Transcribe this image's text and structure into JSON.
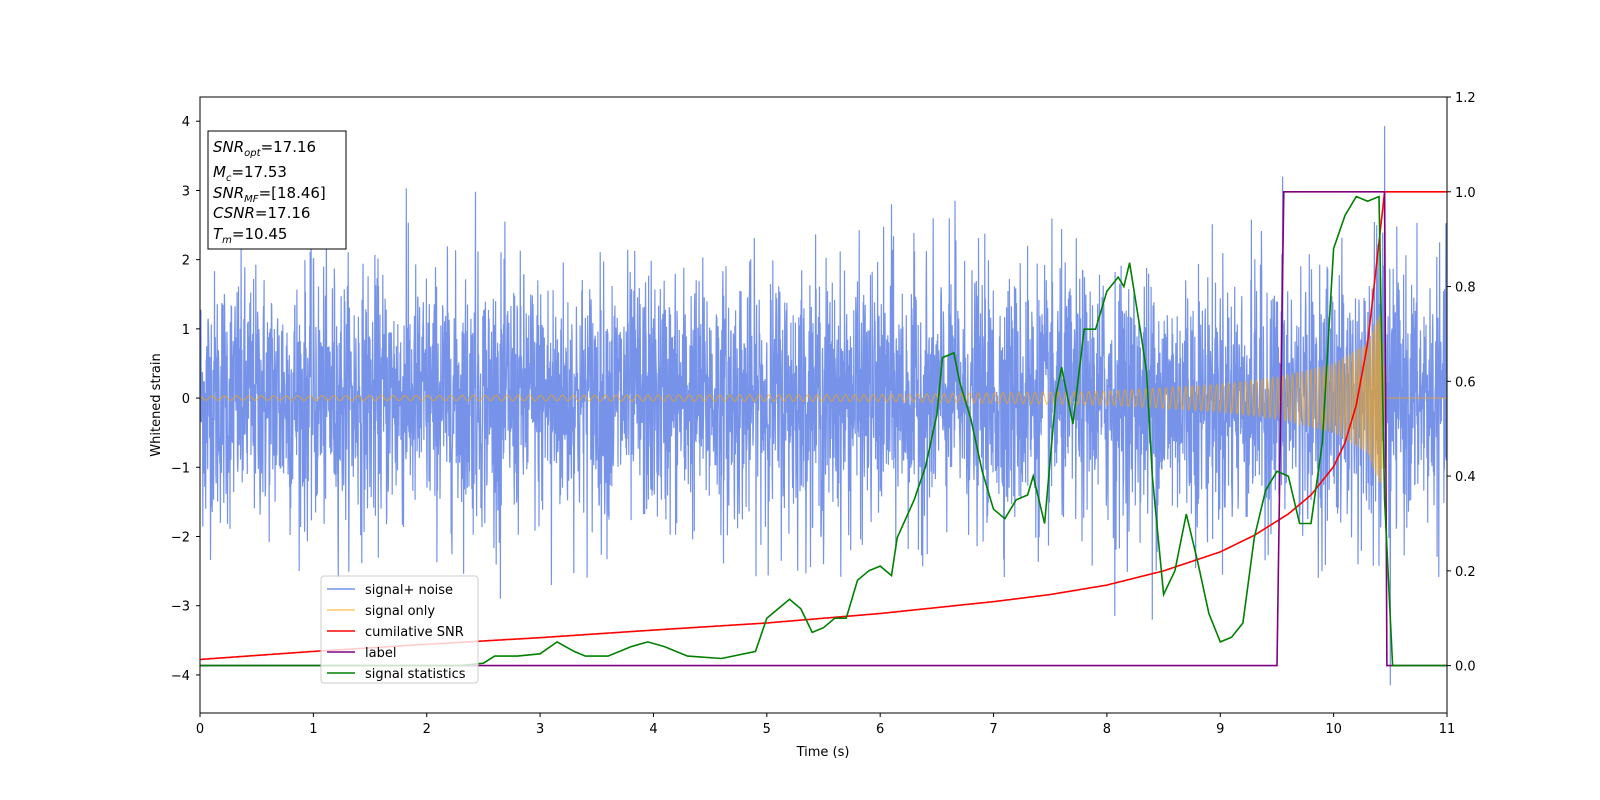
{
  "chart_data": {
    "type": "line",
    "xlabel": "Time (s)",
    "ylabel": "Whitened strain",
    "xlim": [
      0,
      11
    ],
    "ylim_left": [
      -4.55,
      4.35
    ],
    "ylim_right": [
      -0.1,
      1.2
    ],
    "x_ticks": [
      "0",
      "1",
      "2",
      "3",
      "4",
      "5",
      "6",
      "7",
      "8",
      "9",
      "10",
      "11"
    ],
    "y_ticks_left": [
      "4",
      "3",
      "2",
      "1",
      "0",
      "−1",
      "−2",
      "−3",
      "−4"
    ],
    "y_tick_values_left": [
      4,
      3,
      2,
      1,
      0,
      -1,
      -2,
      -3,
      -4
    ],
    "y_ticks_right": [
      "1.2",
      "1.0",
      "0.8",
      "0.6",
      "0.4",
      "0.2",
      "0.0"
    ],
    "y_tick_values_right": [
      1.2,
      1.0,
      0.8,
      0.6,
      0.4,
      0.2,
      0.0
    ],
    "grid": false,
    "legend_position": "lower-left",
    "info_box": {
      "snr_opt": "=17.16",
      "mc": "=17.53",
      "snr_mf": "=[18.46]",
      "csnr": "=17.16",
      "tm": "=10.45"
    },
    "series": [
      {
        "name": "signal+ noise",
        "axis": "left",
        "color": "#4169e1",
        "description": "white noise, amplitude ~ ±2 with spikes to ±3; spike values listed",
        "noise_std": 0.9,
        "spikes": [
          [
            0.05,
            -1.6
          ],
          [
            1.0,
            2.0
          ],
          [
            1.82,
            3.03
          ],
          [
            2.43,
            2.98
          ],
          [
            2.65,
            -2.9
          ],
          [
            3.1,
            -2.7
          ],
          [
            5.5,
            -2.4
          ],
          [
            6.1,
            2.8
          ],
          [
            6.66,
            2.85
          ],
          [
            7.3,
            2.2
          ],
          [
            8.07,
            -3.15
          ],
          [
            8.4,
            -3.2
          ],
          [
            9.55,
            3.2
          ],
          [
            10.45,
            3.93
          ],
          [
            10.5,
            -4.15
          ]
        ]
      },
      {
        "name": "signal only",
        "axis": "left",
        "color": "#ffa500",
        "description": "chirp ending at merger time 10.45 s",
        "merger_time": 10.45,
        "envelope": [
          [
            0,
            0.03
          ],
          [
            6,
            0.05
          ],
          [
            8,
            0.1
          ],
          [
            9,
            0.2
          ],
          [
            9.5,
            0.3
          ],
          [
            10,
            0.5
          ],
          [
            10.3,
            0.8
          ],
          [
            10.42,
            1.3
          ],
          [
            10.46,
            0
          ]
        ]
      },
      {
        "name": "cumilative SNR",
        "axis": "right",
        "color": "#ff0000",
        "x": [
          0,
          1,
          2,
          3,
          4,
          5,
          6,
          7,
          7.5,
          8,
          8.5,
          9,
          9.3,
          9.6,
          9.8,
          10,
          10.1,
          10.2,
          10.3,
          10.38,
          10.45,
          11
        ],
        "values": [
          0.013,
          0.03,
          0.045,
          0.059,
          0.075,
          0.09,
          0.11,
          0.135,
          0.15,
          0.17,
          0.2,
          0.24,
          0.275,
          0.32,
          0.36,
          0.42,
          0.47,
          0.55,
          0.68,
          0.85,
          1.0,
          1.0
        ]
      },
      {
        "name": "label",
        "axis": "right",
        "color": "#800080",
        "x": [
          0,
          9.5,
          9.56,
          10.45,
          10.47,
          11
        ],
        "values": [
          0,
          0,
          1,
          1,
          0,
          0
        ]
      },
      {
        "name": "signal statistics",
        "axis": "right",
        "color": "#008000",
        "x": [
          0,
          2.3,
          2.5,
          2.6,
          2.8,
          3.0,
          3.15,
          3.3,
          3.4,
          3.6,
          3.8,
          3.95,
          4.1,
          4.3,
          4.6,
          4.9,
          5.0,
          5.1,
          5.2,
          5.3,
          5.4,
          5.5,
          5.6,
          5.7,
          5.8,
          5.9,
          6.0,
          6.1,
          6.15,
          6.3,
          6.4,
          6.5,
          6.55,
          6.65,
          6.7,
          6.8,
          6.9,
          7.0,
          7.1,
          7.2,
          7.3,
          7.35,
          7.45,
          7.55,
          7.6,
          7.7,
          7.8,
          7.9,
          8.0,
          8.1,
          8.15,
          8.2,
          8.3,
          8.35,
          8.4,
          8.5,
          8.6,
          8.7,
          8.8,
          8.9,
          9.0,
          9.1,
          9.2,
          9.3,
          9.4,
          9.5,
          9.6,
          9.7,
          9.8,
          9.9,
          10.0,
          10.1,
          10.2,
          10.3,
          10.4,
          10.45,
          10.52,
          11
        ],
        "values": [
          0,
          0,
          0.005,
          0.02,
          0.02,
          0.025,
          0.05,
          0.03,
          0.02,
          0.02,
          0.04,
          0.05,
          0.04,
          0.02,
          0.015,
          0.03,
          0.1,
          0.12,
          0.14,
          0.12,
          0.07,
          0.08,
          0.1,
          0.1,
          0.18,
          0.2,
          0.21,
          0.19,
          0.27,
          0.35,
          0.42,
          0.53,
          0.65,
          0.66,
          0.6,
          0.52,
          0.41,
          0.33,
          0.31,
          0.35,
          0.36,
          0.4,
          0.3,
          0.57,
          0.63,
          0.51,
          0.71,
          0.71,
          0.79,
          0.82,
          0.8,
          0.85,
          0.7,
          0.62,
          0.4,
          0.15,
          0.2,
          0.32,
          0.22,
          0.11,
          0.05,
          0.06,
          0.09,
          0.27,
          0.37,
          0.41,
          0.4,
          0.3,
          0.3,
          0.47,
          0.88,
          0.95,
          0.99,
          0.98,
          0.99,
          0.35,
          0.0,
          0.0
        ]
      }
    ]
  },
  "legend": [
    {
      "label": "signal+ noise",
      "color": "#4169e1"
    },
    {
      "label": "signal only",
      "color": "#ffa500"
    },
    {
      "label": "cumilative SNR",
      "color": "#ff0000"
    },
    {
      "label": "label",
      "color": "#800080"
    },
    {
      "label": "signal statistics",
      "color": "#008000"
    }
  ]
}
